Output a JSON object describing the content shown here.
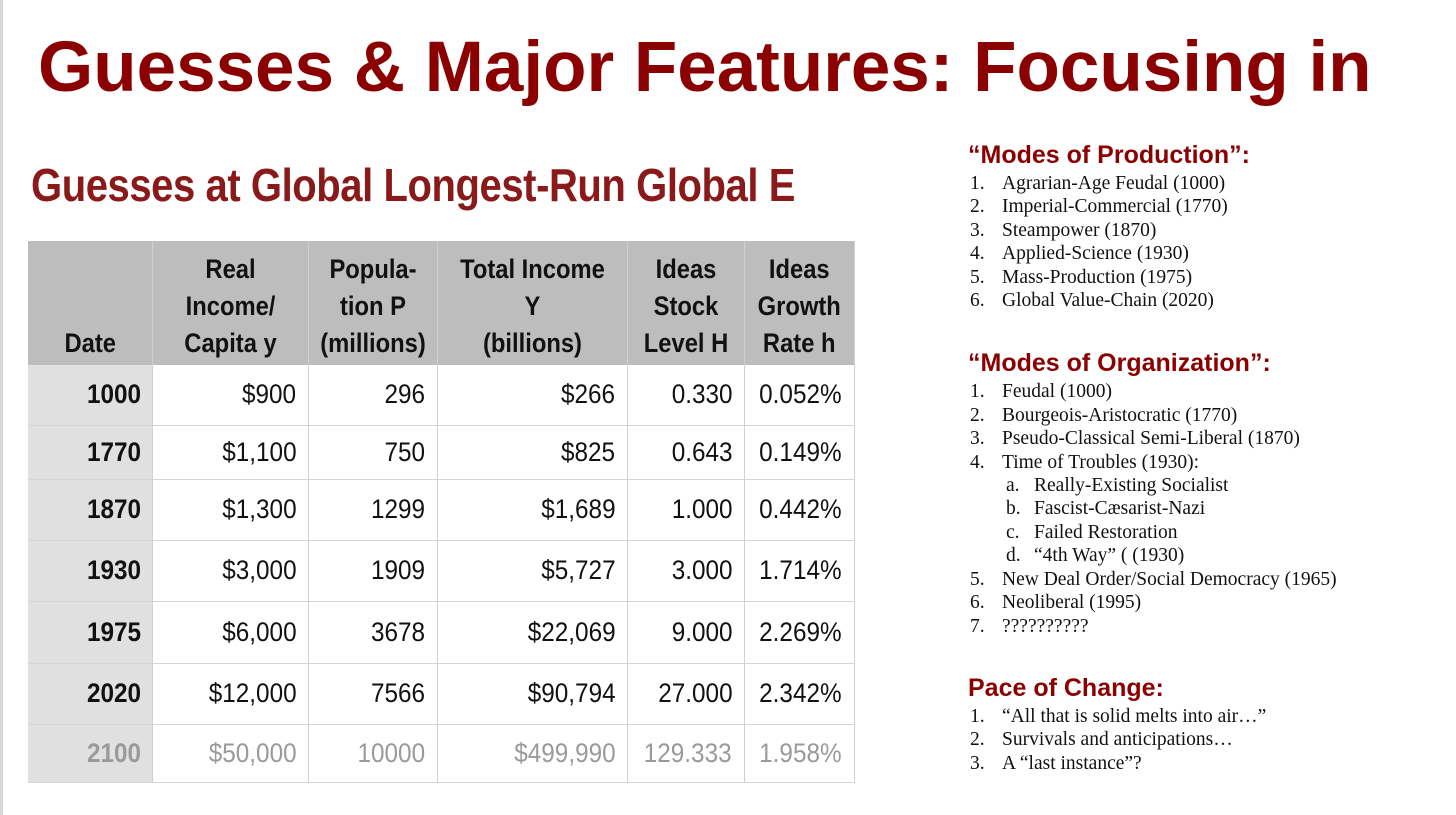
{
  "slide": {
    "title": "Guesses & Major Features: Focusing in"
  },
  "table_panel": {
    "title": "Guesses at Global Longest-Run Global E",
    "headers": [
      "Date",
      "Real\nIncome/\nCapita y",
      "Popula-\ntion P\n(millions)",
      "Total Income Y\n(billions)",
      "Ideas\nStock\nLevel H",
      "Ideas\nGrowth\nRate h"
    ],
    "rows": [
      [
        "1000",
        "$900",
        "296",
        "$266",
        "0.330",
        "0.052%"
      ],
      [
        "1770",
        "$1,100",
        "750",
        "$825",
        "0.643",
        "0.149%"
      ],
      [
        "1870",
        "$1,300",
        "1299",
        "$1,689",
        "1.000",
        "0.442%"
      ],
      [
        "1930",
        "$3,000",
        "1909",
        "$5,727",
        "3.000",
        "1.714%"
      ],
      [
        "1975",
        "$6,000",
        "3678",
        "$22,069",
        "9.000",
        "2.269%"
      ],
      [
        "2020",
        "$12,000",
        "7566",
        "$90,794",
        "27.000",
        "2.342%"
      ],
      [
        "2100",
        "$50,000",
        "10000",
        "$499,990",
        "129.333",
        "1.958%"
      ]
    ]
  },
  "sections": {
    "production": {
      "heading": "“Modes of Production”:",
      "items": [
        {
          "num": "1.",
          "text": "Agrarian-Age Feudal (1000)"
        },
        {
          "num": "2.",
          "text": "Imperial-Commercial (1770)"
        },
        {
          "num": "3.",
          "text": "Steampower (1870)"
        },
        {
          "num": "4.",
          "text": "Applied-Science (1930)"
        },
        {
          "num": "5.",
          "text": "Mass-Production (1975)"
        },
        {
          "num": "6.",
          "text": "Global Value-Chain (2020)"
        }
      ]
    },
    "organization": {
      "heading": "“Modes of Organization”:",
      "items": [
        {
          "num": "1.",
          "text": "Feudal (1000)"
        },
        {
          "num": "2.",
          "text": "Bourgeois-Aristocratic (1770)"
        },
        {
          "num": "3.",
          "text": "Pseudo-Classical Semi-Liberal (1870)"
        },
        {
          "num": "4.",
          "text": "Time of Troubles (1930):"
        },
        {
          "num": "5.",
          "text": "New Deal Order/Social Democracy (1965)"
        },
        {
          "num": "6.",
          "text": "Neoliberal (1995)"
        },
        {
          "num": "7.",
          "text": "??????????"
        }
      ],
      "subitems": [
        {
          "num": "a.",
          "text": "Really-Existing Socialist"
        },
        {
          "num": "b.",
          "text": "Fascist-Cæsarist-Nazi"
        },
        {
          "num": "c.",
          "text": "Failed Restoration"
        },
        {
          "num": "d.",
          "text": "“4th Way” ( (1930)"
        }
      ]
    },
    "pace": {
      "heading": "Pace of Change:",
      "items": [
        {
          "num": "1.",
          "text": "“All that is solid melts into air…”"
        },
        {
          "num": "2.",
          "text": "Survivals and anticipations…"
        },
        {
          "num": "3.",
          "text": "A “last instance”?"
        }
      ]
    }
  },
  "colors": {
    "accent": "#8b0000",
    "header_bg": "#bdbdbd",
    "date_bg": "#e0e0e0",
    "forecast_text": "#9a9a9a"
  }
}
